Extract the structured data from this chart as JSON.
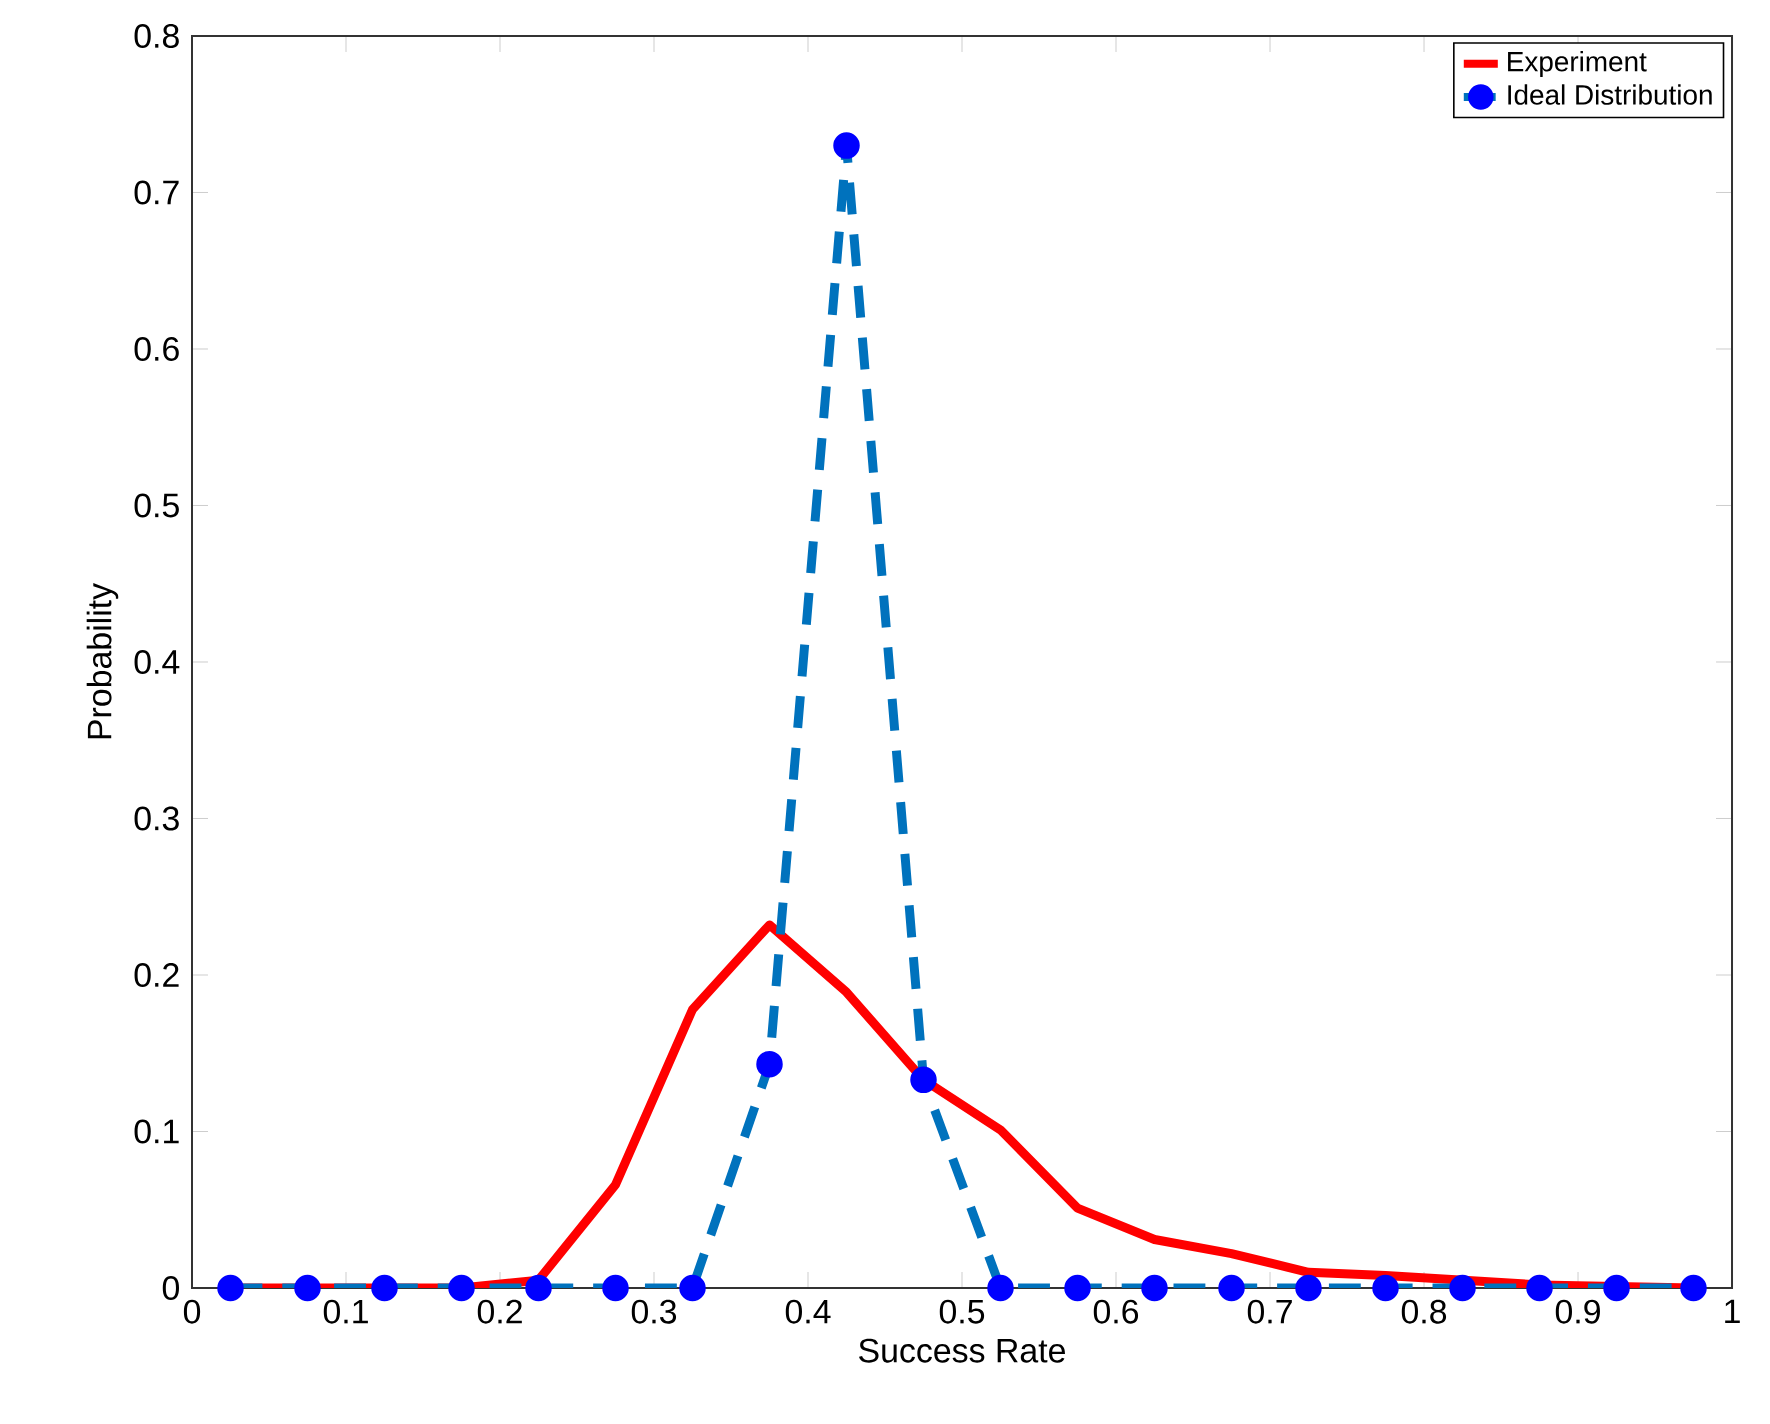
{
  "chart_data": {
    "type": "line",
    "xlabel": "Success Rate",
    "ylabel": "Probability",
    "x": [
      0.025,
      0.075,
      0.125,
      0.175,
      0.225,
      0.275,
      0.325,
      0.375,
      0.425,
      0.475,
      0.525,
      0.575,
      0.625,
      0.675,
      0.725,
      0.775,
      0.825,
      0.875,
      0.925,
      0.975
    ],
    "series": [
      {
        "name": "Experiment",
        "color": "#ff0000",
        "line_style": "solid",
        "values": [
          0,
          0,
          0,
          0,
          0.005,
          0.066,
          0.178,
          0.232,
          0.189,
          0.133,
          0.101,
          0.051,
          0.031,
          0.022,
          0.01,
          0.008,
          0.005,
          0.002,
          0.001,
          0
        ]
      },
      {
        "name": "Ideal Distribution",
        "color": "#0072bd",
        "line_style": "dashed",
        "marker": "circle",
        "values": [
          0,
          0,
          0,
          0,
          0,
          0,
          0,
          0.143,
          0.73,
          0.133,
          0,
          0,
          0,
          0,
          0,
          0,
          0,
          0,
          0,
          0
        ]
      }
    ],
    "xlim": [
      0,
      1
    ],
    "ylim": [
      0,
      0.8
    ],
    "xticks": [
      0,
      0.1,
      0.2,
      0.3,
      0.4,
      0.5,
      0.6,
      0.7,
      0.8,
      0.9,
      1
    ],
    "yticks": [
      0,
      0.1,
      0.2,
      0.3,
      0.4,
      0.5,
      0.6,
      0.7,
      0.8
    ],
    "grid": false,
    "legend": "top right"
  }
}
